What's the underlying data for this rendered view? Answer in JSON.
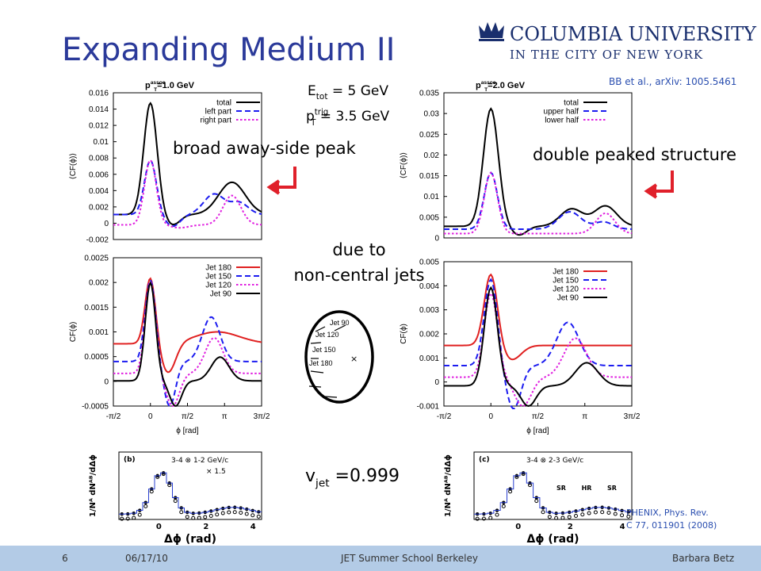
{
  "header": {
    "title": "Expanding Medium II",
    "logo_line1": "COLUMBIA UNIVERSITY",
    "logo_line2": "IN THE CITY OF NEW YORK"
  },
  "citation_top": "BB et al., arXiv: 1005.5461",
  "citation_bottom": [
    "PHENIX, Phys. Rev.",
    "C 77, 011901 (2008)"
  ],
  "energy": {
    "symbol": "E",
    "sub": "tot",
    "text": " = 5 GeV"
  },
  "trigger": {
    "symbol": "p",
    "sub": "T",
    "sup": "trig",
    "text": " = 3.5 GeV"
  },
  "annotations": {
    "left_peak": "broad away-side peak",
    "right_peak": "double peaked structure",
    "reason_1": "due to",
    "reason_2": "non-central jets",
    "velocity": {
      "symbol": "v",
      "sub": "jet",
      "text": " =0.999"
    }
  },
  "plots": [
    {
      "title": {
        "symbol": "p",
        "sub": "T",
        "sup": "assoc",
        "text": "=1.0 GeV"
      },
      "ylabel": "⟨CF(ϕ)⟩",
      "yticks": [
        "0.016",
        "0.014",
        "0.012",
        "0.01",
        "0.008",
        "0.006",
        "0.004",
        "0.002",
        "0",
        "-0.002"
      ],
      "legend": [
        "total",
        "left part",
        "right part"
      ]
    },
    {
      "title": {
        "symbol": "p",
        "sub": "T",
        "sup": "assoc",
        "text": "=2.0 GeV"
      },
      "ylabel": "⟨CF(ϕ)⟩",
      "yticks": [
        "0.035",
        "0.03",
        "0.025",
        "0.02",
        "0.015",
        "0.01",
        "0.005",
        "0"
      ],
      "legend": [
        "total",
        "upper half",
        "lower half"
      ]
    },
    {
      "ylabel": "CF(ϕ)",
      "yticks": [
        "0.0025",
        "0.002",
        "0.0015",
        "0.001",
        "0.0005",
        "0",
        "-0.0005"
      ],
      "legend": [
        "Jet 180",
        "Jet 150",
        "Jet 120",
        "Jet  90"
      ],
      "xticks": [
        "-π/2",
        "0",
        "π/2",
        "π",
        "3π/2"
      ],
      "xlabel": "ϕ [rad]"
    },
    {
      "ylabel": "CF(ϕ)",
      "yticks": [
        "0.005",
        "0.004",
        "0.003",
        "0.002",
        "0.001",
        "0",
        "-0.001"
      ],
      "legend": [
        "Jet 180",
        "Jet 150",
        "Jet 120",
        "Jet  90"
      ],
      "xticks": [
        "-π/2",
        "0",
        "π/2",
        "π",
        "3π/2"
      ],
      "xlabel": "ϕ [rad]"
    }
  ],
  "phenix": [
    {
      "panel": "(b)",
      "bins": "3-4 ⊗ 1-2 GeV/c",
      "note": "× 1.5",
      "ylabel": "1/Nᴬ dNᴬᴮ/dΔϕ",
      "xticks": [
        "0",
        "2",
        "4"
      ],
      "xlabel": "Δϕ (rad)"
    },
    {
      "panel": "(c)",
      "bins": "3-4 ⊗ 2-3 GeV/c",
      "regions": [
        "SR",
        "HR",
        "SR"
      ],
      "ylabel": "1/Nᴬ dNᴬᴮ/dΔϕ",
      "xticks": [
        "0",
        "2",
        "4"
      ],
      "xlabel": "Δϕ (rad)"
    }
  ],
  "diagram": {
    "jets": [
      "Jet 90",
      "Jet 120",
      "Jet 150",
      "Jet 180"
    ],
    "center": "×"
  },
  "footer": {
    "page": "6",
    "date": "06/17/10",
    "event": "JET Summer School Berkeley",
    "author": "Barbara Betz"
  }
}
